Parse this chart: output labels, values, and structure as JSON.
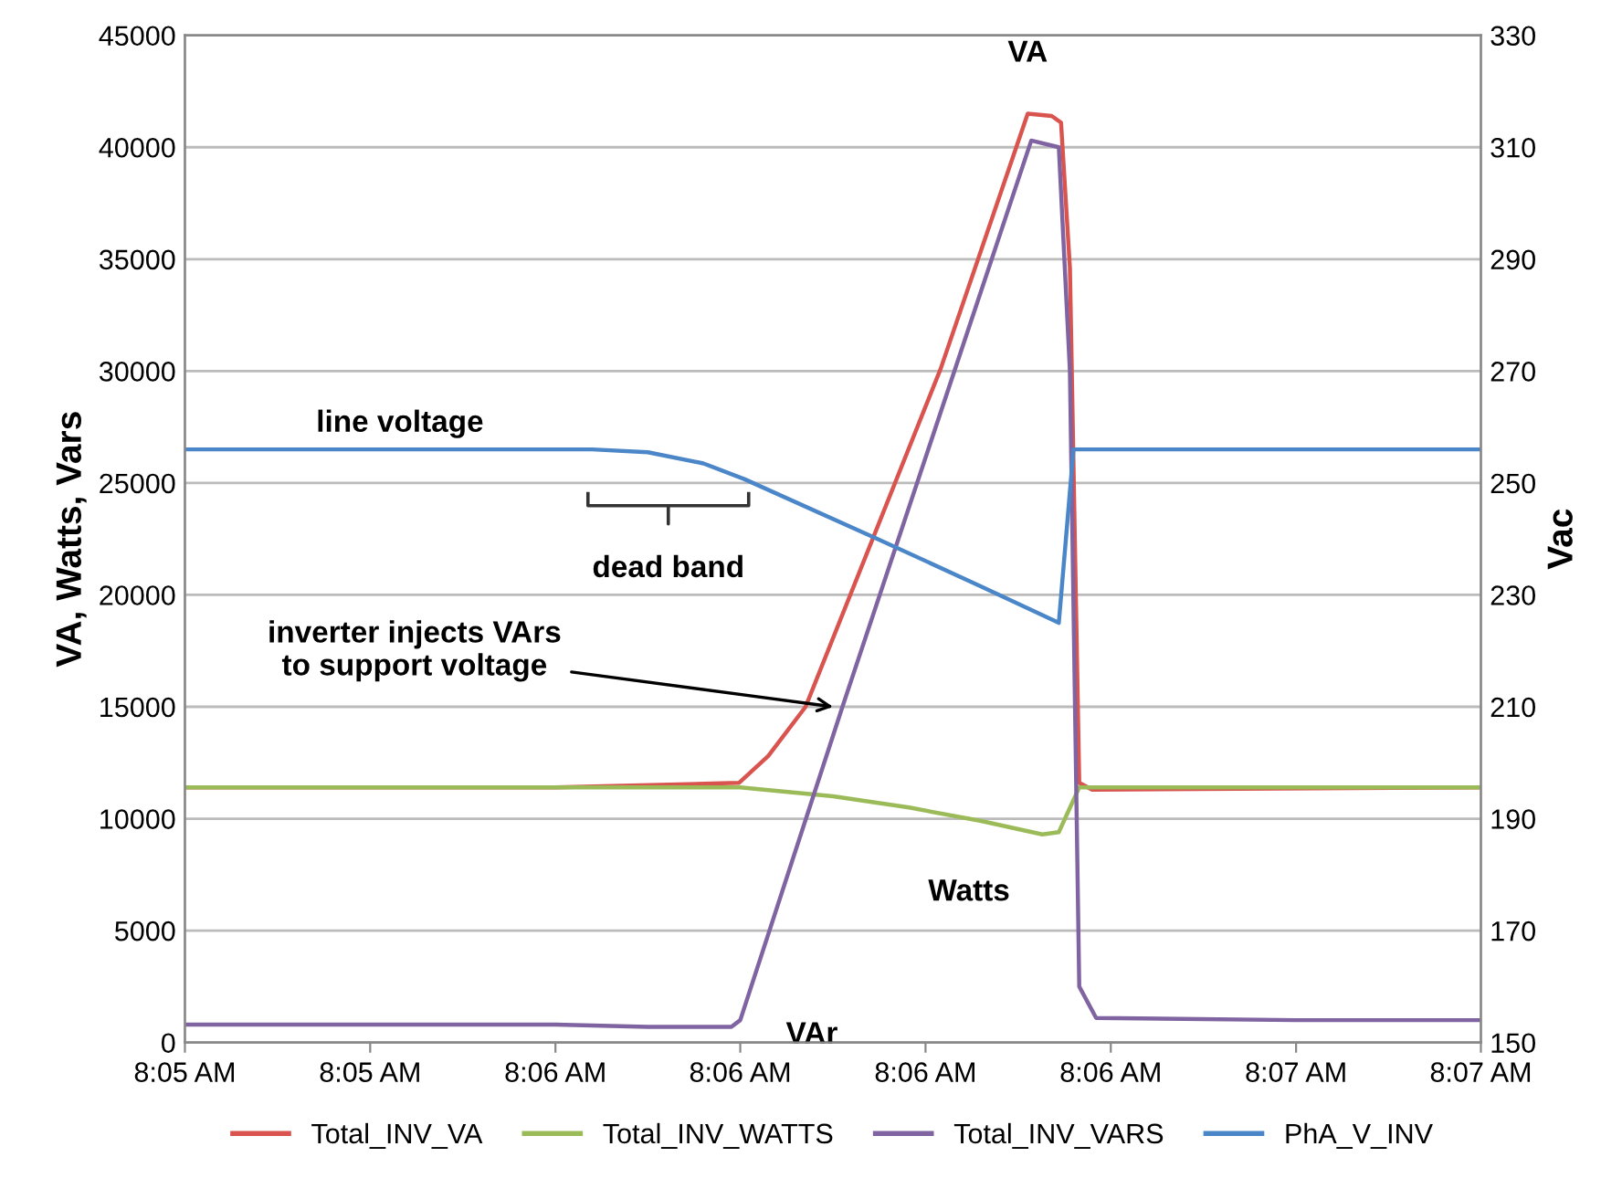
{
  "chart_data": {
    "type": "line",
    "ylabel": "VA, Watts, Vars",
    "y2label": "Vac",
    "xlim": [
      8.08333,
      8.1125
    ],
    "xticks": [
      {
        "value": 8.08333,
        "label": "8:05 AM"
      },
      {
        "value": 8.0875,
        "label": "8:05 AM"
      },
      {
        "value": 8.09167,
        "label": "8:06 AM"
      },
      {
        "value": 8.09583,
        "label": "8:06 AM"
      },
      {
        "value": 8.1,
        "label": "8:06 AM"
      },
      {
        "value": 8.10417,
        "label": "8:06 AM"
      },
      {
        "value": 8.10834,
        "label": "8:07 AM"
      },
      {
        "value": 8.1125,
        "label": "8:07 AM"
      }
    ],
    "ylim": [
      0,
      45000
    ],
    "yticks": [
      0,
      5000,
      10000,
      15000,
      20000,
      25000,
      30000,
      35000,
      40000,
      45000
    ],
    "y2lim": [
      150,
      330
    ],
    "y2ticks": [
      150,
      170,
      190,
      210,
      230,
      250,
      270,
      290,
      310,
      330
    ],
    "grid": "y",
    "legend": "bottom",
    "marker": "none",
    "line_style": "solid",
    "series": [
      {
        "name": "Total_INV_VA",
        "color": "#d9534f",
        "x": [
          8.08333,
          8.0875,
          8.09167,
          8.0958,
          8.09646,
          8.0973,
          8.10034,
          8.1023,
          8.10284,
          8.10305,
          8.10325,
          8.10346,
          8.10375,
          8.1125
        ],
        "values": [
          11400,
          11400,
          11400,
          11600,
          12800,
          15000,
          30100,
          41500,
          41400,
          41100,
          34600,
          11600,
          11300,
          11400
        ]
      },
      {
        "name": "Total_INV_WATTS",
        "color": "#9bbb59",
        "x": [
          8.08333,
          8.0875,
          8.09167,
          8.09583,
          8.09792,
          8.09963,
          8.10125,
          8.10263,
          8.103,
          8.10346,
          8.1125
        ],
        "values": [
          11400,
          11400,
          11400,
          11400,
          11000,
          10500,
          9900,
          9300,
          9400,
          11400,
          11400
        ]
      },
      {
        "name": "Total_INV_VARS",
        "color": "#8064a2",
        "x": [
          8.08333,
          8.0875,
          8.09167,
          8.09375,
          8.09563,
          8.09583,
          8.09813,
          8.10238,
          8.103,
          8.10325,
          8.10346,
          8.10384,
          8.10833,
          8.1125
        ],
        "values": [
          800,
          800,
          800,
          700,
          700,
          1000,
          15000,
          40300,
          40000,
          30000,
          2500,
          1100,
          1000,
          1000
        ]
      },
      {
        "name": "PhA_V_INV",
        "color": "#4a86c8",
        "axis": "y2",
        "x": [
          8.08333,
          8.0875,
          8.0925,
          8.09375,
          8.095,
          8.09592,
          8.09892,
          8.10125,
          8.103,
          8.10333,
          8.10833,
          8.1125
        ],
        "values": [
          256,
          256,
          256,
          255.5,
          253.5,
          250.7,
          240,
          231.5,
          225,
          256,
          256,
          256
        ]
      }
    ],
    "annotations": [
      {
        "text": "VA",
        "x": 8.1023,
        "y": 41500
      },
      {
        "text": "line voltage",
        "x": 8.08817,
        "y": 26550
      },
      "dead band",
      {
        "text": "inverter injects VArs\nto support voltage",
        "x": 8.09792,
        "y": 15000
      },
      {
        "text": "Watts",
        "x": 8.10263,
        "y": 9300
      },
      {
        "text": "VAr",
        "x": 8.09583,
        "y": 1000
      }
    ]
  }
}
